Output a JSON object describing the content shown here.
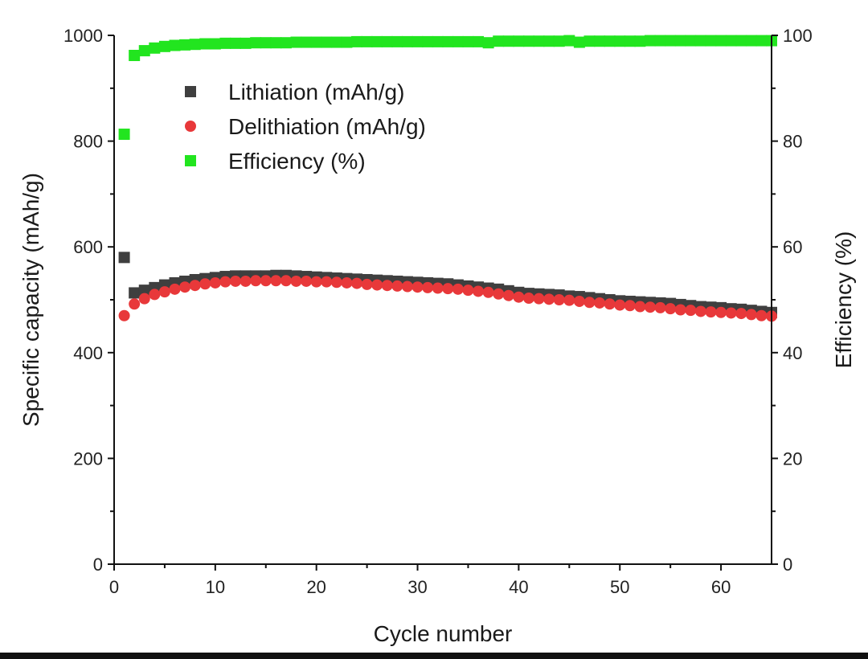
{
  "chart_data": {
    "type": "scatter",
    "title": "",
    "xlabel": "Cycle number",
    "ylabel": "Specific capacity (mAh/g)",
    "y2label": "Efficiency (%)",
    "xlim": [
      0,
      65
    ],
    "ylim": [
      0,
      1000
    ],
    "y2lim": [
      0,
      100
    ],
    "x_ticks": [
      0,
      10,
      20,
      30,
      40,
      50,
      60
    ],
    "y_ticks": [
      0,
      200,
      400,
      600,
      800,
      1000
    ],
    "y2_ticks": [
      0,
      20,
      40,
      60,
      80,
      100
    ],
    "grid": false,
    "legend_position": "top-left",
    "colors": {
      "lithiation": "#3f3f3f",
      "delithiation": "#e8383a",
      "efficiency": "#22e51f",
      "axis": "#111111"
    },
    "series": [
      {
        "name": "Lithiation (mAh/g)",
        "axis": "left",
        "marker": "square",
        "x": [
          1,
          2,
          3,
          4,
          5,
          6,
          7,
          8,
          9,
          10,
          11,
          12,
          13,
          14,
          15,
          16,
          17,
          18,
          19,
          20,
          21,
          22,
          23,
          24,
          25,
          26,
          27,
          28,
          29,
          30,
          31,
          32,
          33,
          34,
          35,
          36,
          37,
          38,
          39,
          40,
          41,
          42,
          43,
          44,
          45,
          46,
          47,
          48,
          49,
          50,
          51,
          52,
          53,
          54,
          55,
          56,
          57,
          58,
          59,
          60,
          61,
          62,
          63,
          64,
          65
        ],
        "values": [
          580,
          513,
          518,
          523,
          528,
          532,
          535,
          538,
          540,
          542,
          544,
          545,
          545,
          545,
          545,
          546,
          546,
          545,
          544,
          543,
          542,
          541,
          540,
          539,
          538,
          537,
          536,
          535,
          534,
          533,
          532,
          531,
          530,
          528,
          526,
          524,
          522,
          520,
          517,
          514,
          512,
          511,
          510,
          509,
          507,
          506,
          504,
          502,
          500,
          498,
          497,
          496,
          495,
          494,
          493,
          491,
          489,
          487,
          486,
          485,
          483,
          482,
          480,
          478,
          476
        ]
      },
      {
        "name": "Delithiation (mAh/g)",
        "axis": "left",
        "marker": "circle",
        "x": [
          1,
          2,
          3,
          4,
          5,
          6,
          7,
          8,
          9,
          10,
          11,
          12,
          13,
          14,
          15,
          16,
          17,
          18,
          19,
          20,
          21,
          22,
          23,
          24,
          25,
          26,
          27,
          28,
          29,
          30,
          31,
          32,
          33,
          34,
          35,
          36,
          37,
          38,
          39,
          40,
          41,
          42,
          43,
          44,
          45,
          46,
          47,
          48,
          49,
          50,
          51,
          52,
          53,
          54,
          55,
          56,
          57,
          58,
          59,
          60,
          61,
          62,
          63,
          64,
          65
        ],
        "values": [
          470,
          492,
          502,
          510,
          515,
          520,
          524,
          527,
          530,
          532,
          534,
          535,
          535,
          536,
          536,
          536,
          536,
          535,
          535,
          534,
          534,
          533,
          532,
          531,
          529,
          528,
          527,
          526,
          525,
          524,
          523,
          522,
          521,
          520,
          518,
          516,
          514,
          511,
          508,
          505,
          503,
          502,
          501,
          500,
          499,
          497,
          495,
          494,
          492,
          490,
          489,
          487,
          486,
          485,
          483,
          481,
          480,
          478,
          477,
          476,
          475,
          474,
          472,
          470,
          469
        ]
      },
      {
        "name": "Efficiency (%)",
        "axis": "right",
        "marker": "square",
        "x": [
          1,
          2,
          3,
          4,
          5,
          6,
          7,
          8,
          9,
          10,
          11,
          12,
          13,
          14,
          15,
          16,
          17,
          18,
          19,
          20,
          21,
          22,
          23,
          24,
          25,
          26,
          27,
          28,
          29,
          30,
          31,
          32,
          33,
          34,
          35,
          36,
          37,
          38,
          39,
          40,
          41,
          42,
          43,
          44,
          45,
          46,
          47,
          48,
          49,
          50,
          51,
          52,
          53,
          54,
          55,
          56,
          57,
          58,
          59,
          60,
          61,
          62,
          63,
          64,
          65
        ],
        "values": [
          81.3,
          96.2,
          97.1,
          97.6,
          97.9,
          98.1,
          98.2,
          98.3,
          98.4,
          98.4,
          98.5,
          98.5,
          98.5,
          98.6,
          98.6,
          98.6,
          98.6,
          98.7,
          98.7,
          98.7,
          98.7,
          98.7,
          98.7,
          98.8,
          98.8,
          98.8,
          98.8,
          98.8,
          98.8,
          98.8,
          98.8,
          98.8,
          98.8,
          98.8,
          98.8,
          98.8,
          98.6,
          98.9,
          98.9,
          98.9,
          98.9,
          98.9,
          98.9,
          98.9,
          99.0,
          98.7,
          98.9,
          98.9,
          98.9,
          98.9,
          98.9,
          98.9,
          99.0,
          99.0,
          99.0,
          99.0,
          99.0,
          99.0,
          99.0,
          99.0,
          99.0,
          99.0,
          99.0,
          99.0,
          99.0
        ]
      }
    ]
  }
}
